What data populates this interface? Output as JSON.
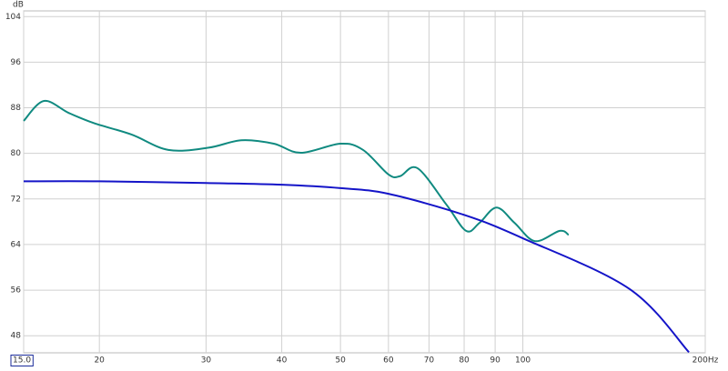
{
  "chart_data": {
    "type": "line",
    "y_unit_label": "dB",
    "xscale": "log",
    "grid": true,
    "xlim": [
      15,
      200
    ],
    "ylim": [
      45,
      105
    ],
    "xticks": [
      {
        "value": 15,
        "label": "15.0"
      },
      20,
      30,
      40,
      50,
      60,
      70,
      80,
      90,
      100,
      {
        "value": 200,
        "label": "200Hz"
      }
    ],
    "yticks": [
      48,
      56,
      64,
      72,
      80,
      88,
      96,
      104
    ],
    "series": [
      {
        "color": "#108a80",
        "x": [
          15,
          16.2,
          17.8,
          19.6,
          22.6,
          26,
          30.3,
          34.3,
          38.8,
          43,
          50,
          54.5,
          60,
          62.7,
          67,
          74.8,
          80.6,
          84.8,
          90.5,
          96.9,
          104.7,
          115,
          119
        ],
        "values": [
          85.7,
          89.2,
          87.1,
          85.3,
          83.3,
          80.6,
          81.0,
          82.3,
          81.7,
          80.1,
          81.7,
          80.6,
          76.3,
          76.0,
          77.4,
          71.0,
          66.4,
          67.8,
          70.5,
          67.8,
          64.6,
          66.4,
          65.7
        ]
      },
      {
        "color": "#1414c8",
        "x": [
          15,
          20,
          30,
          40,
          50,
          60,
          80,
          100,
          150,
          188
        ],
        "values": [
          75.1,
          75.1,
          74.8,
          74.5,
          73.9,
          72.9,
          69.2,
          65.1,
          56.2,
          45.1
        ]
      }
    ]
  }
}
